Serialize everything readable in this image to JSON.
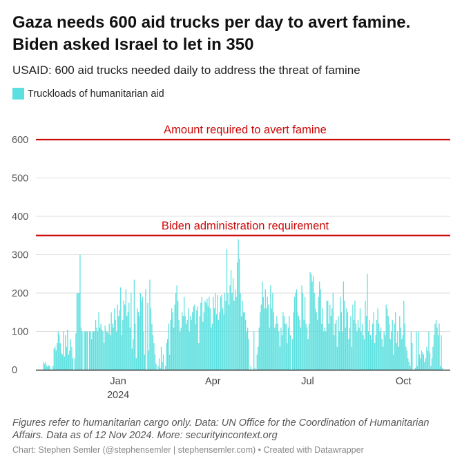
{
  "header": {
    "title": "Gaza needs 600 aid trucks per day to avert famine. Biden asked Israel to let in 350",
    "subtitle": "USAID: 600 aid trucks needed daily to address the threat of famine"
  },
  "footer": {
    "notes": "Figures refer to humanitarian cargo only. Data: UN Office for the Coordination of Humanitarian Affairs. Data as of 12 Nov 2024. More: securityincontext.org",
    "credit": "Chart: Stephen Semler (@stephensemler | stephensemler.com) • Created with Datawrapper"
  },
  "colors": {
    "bar": "#5ce0df",
    "reference": "#cc0a0a",
    "grid": "#dddddd",
    "axis": "#333333"
  },
  "chart_data": {
    "type": "bar",
    "title": "Gaza needs 600 aid trucks per day to avert famine. Biden asked Israel to let in 350",
    "legend": [
      "Truckloads of humanitarian aid"
    ],
    "legend_position": "top-left",
    "start_date": "2023-10-21",
    "x_domain": [
      "2023-10-14",
      "2024-11-15"
    ],
    "ylim": [
      0,
      600
    ],
    "yticks": [
      0,
      100,
      200,
      300,
      400,
      500,
      600
    ],
    "xticks": [
      {
        "date": "2024-01-01",
        "label": "Jan",
        "sublabel": "2024"
      },
      {
        "date": "2024-04-01",
        "label": "Apr",
        "sublabel": ""
      },
      {
        "date": "2024-07-01",
        "label": "Jul",
        "sublabel": ""
      },
      {
        "date": "2024-10-01",
        "label": "Oct",
        "sublabel": ""
      }
    ],
    "grid": true,
    "reference_lines": [
      {
        "value": 600,
        "label": "Amount required to avert famine"
      },
      {
        "value": 350,
        "label": "Biden administration requirement"
      }
    ],
    "series": [
      {
        "name": "Truckloads of humanitarian aid",
        "values": [
          20,
          15,
          20,
          10,
          8,
          12,
          10,
          0,
          0,
          10,
          55,
          60,
          50,
          70,
          100,
          90,
          70,
          45,
          40,
          100,
          35,
          90,
          60,
          105,
          40,
          50,
          80,
          60,
          30,
          0,
          30,
          95,
          200,
          200,
          200,
          300,
          110,
          100,
          0,
          100,
          100,
          100,
          100,
          0,
          100,
          100,
          80,
          100,
          100,
          100,
          130,
          110,
          100,
          150,
          110,
          120,
          105,
          100,
          70,
          115,
          100,
          100,
          95,
          120,
          90,
          150,
          120,
          110,
          160,
          130,
          100,
          170,
          140,
          155,
          215,
          90,
          130,
          180,
          170,
          210,
          140,
          150,
          175,
          110,
          200,
          55,
          80,
          235,
          120,
          30,
          160,
          150,
          140,
          200,
          180,
          190,
          100,
          40,
          210,
          0,
          175,
          50,
          235,
          160,
          120,
          90,
          70,
          40,
          15,
          0,
          10,
          30,
          5,
          60,
          20,
          40,
          0,
          10,
          70,
          80,
          120,
          40,
          130,
          160,
          150,
          110,
          170,
          200,
          220,
          180,
          130,
          100,
          110,
          150,
          140,
          190,
          140,
          120,
          130,
          160,
          100,
          140,
          130,
          150,
          165,
          170,
          120,
          155,
          165,
          70,
          140,
          175,
          190,
          125,
          150,
          180,
          175,
          185,
          165,
          190,
          160,
          110,
          120,
          190,
          160,
          200,
          145,
          195,
          130,
          150,
          190,
          195,
          160,
          145,
          200,
          180,
          315,
          200,
          170,
          220,
          260,
          200,
          240,
          180,
          210,
          190,
          280,
          340,
          290,
          200,
          140,
          180,
          150,
          150,
          130,
          100,
          110,
          80,
          0,
          10,
          0,
          0,
          100,
          5,
          0,
          40,
          60,
          110,
          150,
          170,
          230,
          190,
          160,
          210,
          160,
          190,
          170,
          110,
          220,
          160,
          200,
          150,
          110,
          120,
          140,
          120,
          100,
          60,
          110,
          90,
          150,
          140,
          120,
          120,
          70,
          110,
          140,
          90,
          0,
          80,
          150,
          190,
          200,
          210,
          150,
          140,
          130,
          110,
          220,
          200,
          130,
          190,
          120,
          110,
          80,
          120,
          255,
          250,
          230,
          245,
          200,
          160,
          150,
          130,
          190,
          230,
          210,
          120,
          160,
          100,
          110,
          100,
          180,
          180,
          120,
          170,
          140,
          160,
          200,
          90,
          120,
          130,
          60,
          140,
          100,
          190,
          150,
          100,
          230,
          180,
          110,
          160,
          150,
          80,
          110,
          140,
          60,
          170,
          130,
          180,
          120,
          100,
          130,
          110,
          160,
          100,
          120,
          90,
          80,
          180,
          140,
          250,
          100,
          130,
          90,
          80,
          120,
          150,
          70,
          90,
          130,
          160,
          120,
          100,
          110,
          80,
          60,
          100,
          90,
          170,
          160,
          140,
          120,
          80,
          100,
          130,
          40,
          120,
          150,
          70,
          100,
          60,
          140,
          110,
          80,
          90,
          180,
          120,
          60,
          50,
          30,
          20,
          10,
          100,
          70,
          0,
          0,
          5,
          100,
          10,
          100,
          40,
          30,
          50,
          45,
          40,
          20,
          30,
          60,
          50,
          100,
          45,
          10,
          30,
          60,
          90,
          120,
          130,
          110,
          90,
          120,
          10,
          90,
          5
        ]
      }
    ]
  }
}
